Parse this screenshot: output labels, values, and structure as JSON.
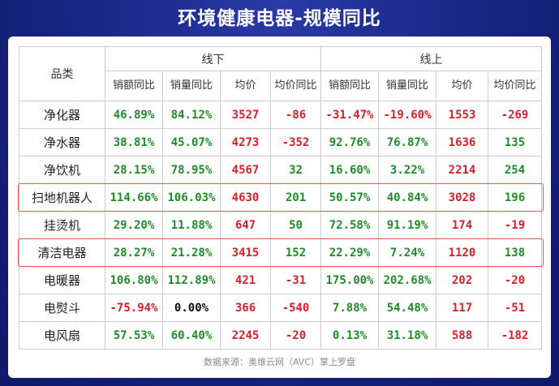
{
  "chart_data": {
    "type": "table",
    "title": "环境健康电器-规模同比",
    "category_header": "品类",
    "groups": [
      "线下",
      "线上"
    ],
    "columns": [
      "销额同比",
      "销量同比",
      "均价",
      "均价同比"
    ],
    "rows": [
      {
        "category": "净化器",
        "offline": [
          "46.89%",
          "84.12%",
          "3527",
          "-86"
        ],
        "online": [
          "-31.47%",
          "-19.60%",
          "1553",
          "-269"
        ]
      },
      {
        "category": "净水器",
        "offline": [
          "38.81%",
          "45.07%",
          "4273",
          "-352"
        ],
        "online": [
          "92.76%",
          "76.87%",
          "1636",
          "135"
        ]
      },
      {
        "category": "净饮机",
        "offline": [
          "28.15%",
          "78.95%",
          "4567",
          "32"
        ],
        "online": [
          "16.60%",
          "3.22%",
          "2214",
          "254"
        ]
      },
      {
        "category": "扫地机器人",
        "offline": [
          "114.66%",
          "106.03%",
          "4630",
          "201"
        ],
        "online": [
          "50.57%",
          "40.84%",
          "3028",
          "196"
        ]
      },
      {
        "category": "挂烫机",
        "offline": [
          "29.20%",
          "11.88%",
          "647",
          "50"
        ],
        "online": [
          "72.58%",
          "91.19%",
          "174",
          "-19"
        ]
      },
      {
        "category": "清洁电器",
        "offline": [
          "28.27%",
          "21.28%",
          "3415",
          "152"
        ],
        "online": [
          "22.29%",
          "7.24%",
          "1120",
          "138"
        ]
      },
      {
        "category": "电暖器",
        "offline": [
          "106.80%",
          "112.89%",
          "421",
          "-31"
        ],
        "online": [
          "175.00%",
          "202.68%",
          "202",
          "-20"
        ]
      },
      {
        "category": "电熨斗",
        "offline": [
          "-75.94%",
          "0.00%",
          "366",
          "-540"
        ],
        "online": [
          "7.88%",
          "54.48%",
          "117",
          "-51"
        ]
      },
      {
        "category": "电风扇",
        "offline": [
          "57.53%",
          "60.40%",
          "2245",
          "-20"
        ],
        "online": [
          "0.13%",
          "31.18%",
          "588",
          "-182"
        ]
      }
    ],
    "highlighted_rows": [
      "扫地机器人",
      "清洁电器"
    ],
    "source": "数据来源：奥维云网（AVC）掌上罗盘"
  },
  "colors": {
    "background": "#14207a",
    "positive": "#1f8c2a",
    "negative": "#d8202a",
    "price_red": "#d8202a",
    "highlight_border": "#e0574a"
  }
}
